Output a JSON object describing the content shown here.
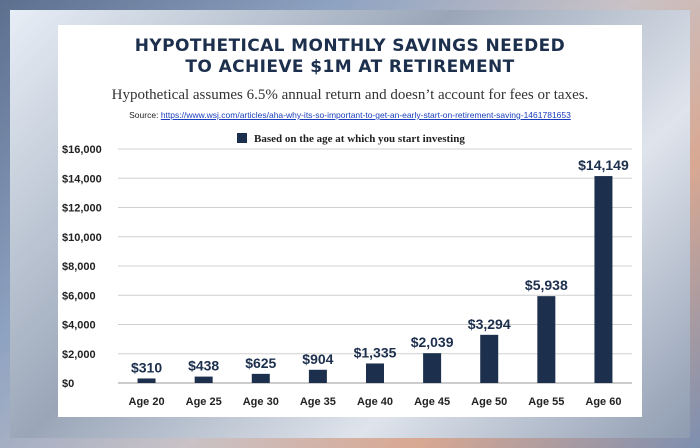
{
  "header": {
    "title_line1": "HYPOTHETICAL MONTHLY SAVINGS NEEDED",
    "title_line2": "TO ACHIEVE $1M AT RETIREMENT",
    "subtitle": "Hypothetical assumes 6.5% annual return and doesn’t account for fees or taxes.",
    "source_prefix": "Source:",
    "source_url": "https://www.wsj.com/articles/aha-why-its-so-important-to-get-an-early-start-on-retirement-saving-1461781653"
  },
  "chart_data": {
    "type": "bar",
    "categories": [
      "Age 20",
      "Age 25",
      "Age 30",
      "Age 35",
      "Age 40",
      "Age 45",
      "Age 50",
      "Age 55",
      "Age 60"
    ],
    "series": [
      {
        "name": "Based on the age at which you start investing",
        "values": [
          310,
          438,
          625,
          904,
          1335,
          2039,
          3294,
          5938,
          14149
        ],
        "labels": [
          "$310",
          "$438",
          "$625",
          "$904",
          "$1,335",
          "$2,039",
          "$3,294",
          "$5,938",
          "$14,149"
        ]
      }
    ],
    "ylim": [
      0,
      16000
    ],
    "yticks": [
      0,
      2000,
      4000,
      6000,
      8000,
      10000,
      12000,
      14000,
      16000
    ],
    "ytick_labels": [
      "$0",
      "$2,000",
      "$4,000",
      "$6,000",
      "$8,000",
      "$10,000",
      "$12,000",
      "$14,000",
      "$16,000"
    ],
    "grid": true,
    "legend_position": "top",
    "bar_color": "#1c2f4d",
    "grid_color": "#d0d0d0"
  }
}
